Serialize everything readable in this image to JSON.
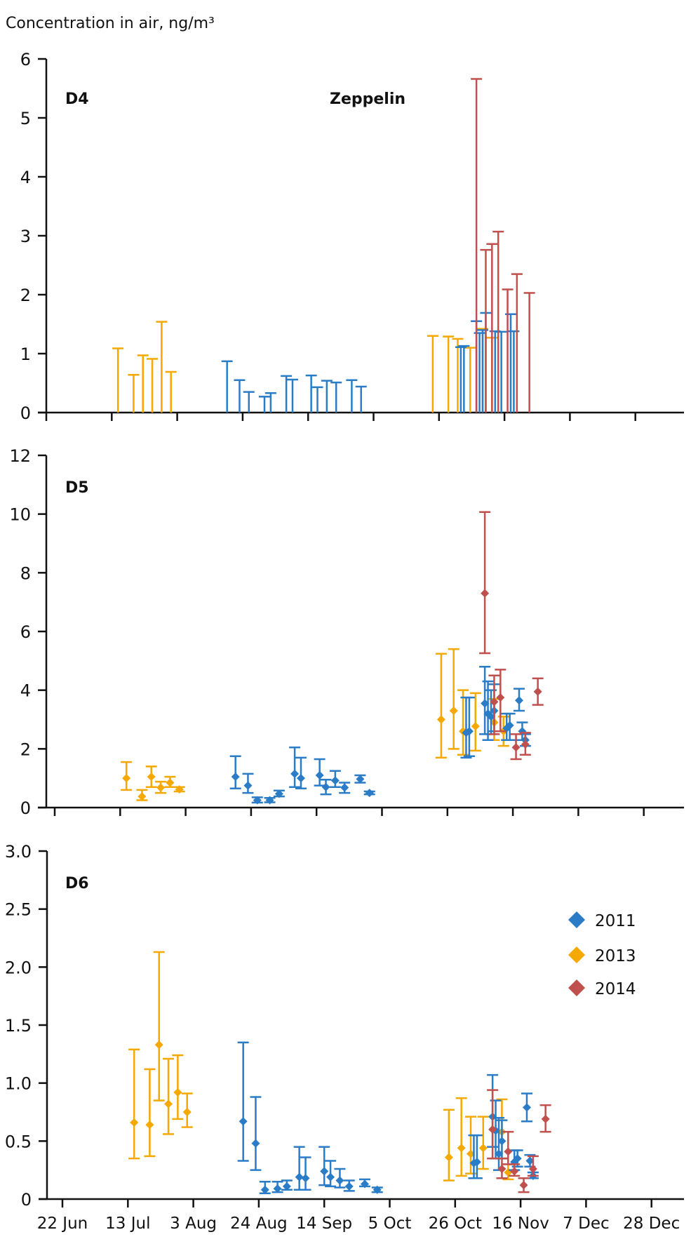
{
  "chart_data": {
    "type": "scatter",
    "y_axis_title": "Concentration in air, ng/m³",
    "station": "Zeppelin",
    "x_tick_labels": [
      "22 Jun",
      "13 Jul",
      "3 Aug",
      "24 Aug",
      "14 Sep",
      "5 Oct",
      "26 Oct",
      "16 Nov",
      "7 Dec",
      "28 Dec"
    ],
    "x_tick_days": [
      0,
      21,
      42,
      63,
      84,
      105,
      126,
      147,
      168,
      189
    ],
    "x_unit": "days since 22 Jun",
    "xlim": [
      0,
      197
    ],
    "legend": {
      "placement": "right, inside D6 panel",
      "entries": [
        {
          "label": "2011",
          "color": "#2a7cc7"
        },
        {
          "label": "2013",
          "color": "#f5a800"
        },
        {
          "label": "2014",
          "color": "#c0504d"
        }
      ]
    },
    "panels": [
      {
        "label": "D4",
        "ylim": [
          0,
          6
        ],
        "y_ticks": [
          "0",
          "1",
          "2",
          "3",
          "4",
          "5",
          "6"
        ],
        "y_tick_values": [
          0,
          1,
          2,
          3,
          4,
          5,
          6
        ],
        "show_points": false,
        "series": [
          {
            "name": "2013",
            "color": "#f5a800",
            "points": [
              {
                "x": 23,
                "y": 0,
                "hi": 1.09
              },
              {
                "x": 28,
                "y": 0,
                "hi": 0.64
              },
              {
                "x": 31,
                "y": 0,
                "hi": 0.97
              },
              {
                "x": 34,
                "y": 0,
                "hi": 0.91
              },
              {
                "x": 37,
                "y": 0,
                "hi": 1.54
              },
              {
                "x": 40,
                "y": 0,
                "hi": 0.69
              },
              {
                "x": 124,
                "y": 0,
                "hi": 1.3
              },
              {
                "x": 129,
                "y": 0,
                "hi": 1.29
              },
              {
                "x": 132,
                "y": 0,
                "hi": 1.25
              },
              {
                "x": 136,
                "y": 0,
                "hi": 1.1
              },
              {
                "x": 140,
                "y": 0,
                "hi": 1.42
              },
              {
                "x": 143,
                "y": 0,
                "hi": 1.27
              }
            ]
          },
          {
            "name": "2011",
            "color": "#2a7cc7",
            "points": [
              {
                "x": 58,
                "y": 0,
                "hi": 0.87
              },
              {
                "x": 62,
                "y": 0,
                "hi": 0.55
              },
              {
                "x": 65,
                "y": 0,
                "hi": 0.35
              },
              {
                "x": 70,
                "y": 0,
                "hi": 0.27
              },
              {
                "x": 72,
                "y": 0,
                "hi": 0.33
              },
              {
                "x": 77,
                "y": 0,
                "hi": 0.62
              },
              {
                "x": 79,
                "y": 0,
                "hi": 0.56
              },
              {
                "x": 85,
                "y": 0,
                "hi": 0.63
              },
              {
                "x": 87,
                "y": 0,
                "hi": 0.43
              },
              {
                "x": 90,
                "y": 0,
                "hi": 0.54
              },
              {
                "x": 93,
                "y": 0,
                "hi": 0.51
              },
              {
                "x": 98,
                "y": 0,
                "hi": 0.55
              },
              {
                "x": 101,
                "y": 0,
                "hi": 0.44
              },
              {
                "x": 133,
                "y": 0,
                "hi": 1.11
              },
              {
                "x": 134,
                "y": 0,
                "hi": 1.13
              },
              {
                "x": 138,
                "y": 0,
                "hi": 1.55
              },
              {
                "x": 139,
                "y": 0,
                "hi": 1.35
              },
              {
                "x": 140,
                "y": 0,
                "hi": 1.4
              },
              {
                "x": 141,
                "y": 0,
                "hi": 1.69
              },
              {
                "x": 144,
                "y": 0,
                "hi": 1.38
              },
              {
                "x": 146,
                "y": 0,
                "hi": 1.37
              },
              {
                "x": 149,
                "y": 0,
                "hi": 1.67
              },
              {
                "x": 150,
                "y": 0,
                "hi": 1.38
              }
            ]
          },
          {
            "name": "2014",
            "color": "#c0504d",
            "points": [
              {
                "x": 138,
                "y": 0,
                "hi": 5.66
              },
              {
                "x": 141,
                "y": 0,
                "hi": 2.76
              },
              {
                "x": 143,
                "y": 0,
                "hi": 2.86
              },
              {
                "x": 145,
                "y": 0,
                "hi": 3.07
              },
              {
                "x": 148,
                "y": 0,
                "hi": 2.09
              },
              {
                "x": 151,
                "y": 0,
                "hi": 2.35
              },
              {
                "x": 155,
                "y": 0,
                "hi": 2.03
              }
            ]
          }
        ]
      },
      {
        "label": "D5",
        "ylim": [
          0,
          12
        ],
        "y_ticks": [
          "0",
          "2",
          "4",
          "6",
          "8",
          "10",
          "12"
        ],
        "y_tick_values": [
          0,
          2,
          4,
          6,
          8,
          10,
          12
        ],
        "show_points": true,
        "series": [
          {
            "name": "2013",
            "color": "#f5a800",
            "points": [
              {
                "x": 23,
                "y": 1.0,
                "lo": 0.6,
                "hi": 1.55
              },
              {
                "x": 28,
                "y": 0.38,
                "lo": 0.25,
                "hi": 0.6
              },
              {
                "x": 31,
                "y": 1.05,
                "lo": 0.7,
                "hi": 1.4
              },
              {
                "x": 34,
                "y": 0.68,
                "lo": 0.5,
                "hi": 0.88
              },
              {
                "x": 37,
                "y": 0.85,
                "lo": 0.7,
                "hi": 1.05
              },
              {
                "x": 40,
                "y": 0.62,
                "lo": 0.55,
                "hi": 0.7
              },
              {
                "x": 124,
                "y": 3.0,
                "lo": 1.7,
                "hi": 5.24
              },
              {
                "x": 128,
                "y": 3.3,
                "lo": 2.0,
                "hi": 5.4
              },
              {
                "x": 131,
                "y": 2.6,
                "lo": 1.8,
                "hi": 4.0
              },
              {
                "x": 135,
                "y": 2.77,
                "lo": 1.94,
                "hi": 3.9
              },
              {
                "x": 141,
                "y": 2.9,
                "lo": 2.3,
                "hi": 3.7
              },
              {
                "x": 144,
                "y": 2.6,
                "lo": 2.1,
                "hi": 3.1
              }
            ]
          },
          {
            "name": "2011",
            "color": "#2a7cc7",
            "points": [
              {
                "x": 58,
                "y": 1.05,
                "lo": 0.65,
                "hi": 1.75
              },
              {
                "x": 62,
                "y": 0.75,
                "lo": 0.5,
                "hi": 1.15
              },
              {
                "x": 65,
                "y": 0.25,
                "lo": 0.17,
                "hi": 0.35
              },
              {
                "x": 69,
                "y": 0.25,
                "lo": 0.18,
                "hi": 0.33
              },
              {
                "x": 72,
                "y": 0.47,
                "lo": 0.38,
                "hi": 0.58
              },
              {
                "x": 77,
                "y": 1.15,
                "lo": 0.7,
                "hi": 2.05
              },
              {
                "x": 79,
                "y": 1.0,
                "lo": 0.65,
                "hi": 1.7
              },
              {
                "x": 85,
                "y": 1.1,
                "lo": 0.75,
                "hi": 1.65
              },
              {
                "x": 87,
                "y": 0.7,
                "lo": 0.45,
                "hi": 0.95
              },
              {
                "x": 90,
                "y": 0.92,
                "lo": 0.7,
                "hi": 1.25
              },
              {
                "x": 93,
                "y": 0.68,
                "lo": 0.5,
                "hi": 0.85
              },
              {
                "x": 98,
                "y": 0.97,
                "lo": 0.85,
                "hi": 1.1
              },
              {
                "x": 101,
                "y": 0.5,
                "lo": 0.45,
                "hi": 0.55
              },
              {
                "x": 132,
                "y": 2.55,
                "lo": 1.7,
                "hi": 3.75
              },
              {
                "x": 133,
                "y": 2.6,
                "lo": 1.75,
                "hi": 3.75
              },
              {
                "x": 138,
                "y": 3.55,
                "lo": 2.5,
                "hi": 4.8
              },
              {
                "x": 139,
                "y": 3.2,
                "lo": 2.3,
                "hi": 4.3
              },
              {
                "x": 140,
                "y": 3.1,
                "lo": 2.5,
                "hi": 4.0
              },
              {
                "x": 141,
                "y": 3.3,
                "lo": 2.6,
                "hi": 4.2
              },
              {
                "x": 145,
                "y": 2.7,
                "lo": 2.3,
                "hi": 3.2
              },
              {
                "x": 146,
                "y": 2.8,
                "lo": 2.3,
                "hi": 3.2
              },
              {
                "x": 149,
                "y": 3.65,
                "lo": 3.3,
                "hi": 4.05
              },
              {
                "x": 150,
                "y": 2.6,
                "lo": 2.3,
                "hi": 2.9
              },
              {
                "x": 151,
                "y": 2.3,
                "lo": 2.1,
                "hi": 2.5
              }
            ]
          },
          {
            "name": "2014",
            "color": "#c0504d",
            "points": [
              {
                "x": 138,
                "y": 7.3,
                "lo": 5.26,
                "hi": 10.07
              },
              {
                "x": 141,
                "y": 3.6,
                "lo": 2.5,
                "hi": 4.5
              },
              {
                "x": 143,
                "y": 3.75,
                "lo": 2.6,
                "hi": 4.7
              },
              {
                "x": 148,
                "y": 2.05,
                "lo": 1.65,
                "hi": 2.5
              },
              {
                "x": 151,
                "y": 2.15,
                "lo": 1.8,
                "hi": 2.55
              },
              {
                "x": 155,
                "y": 3.95,
                "lo": 3.5,
                "hi": 4.4
              }
            ]
          }
        ]
      },
      {
        "label": "D6",
        "ylim": [
          0,
          3.0
        ],
        "y_ticks": [
          "0",
          "0.5",
          "1.0",
          "1.5",
          "2.0",
          "2.5",
          "3.0"
        ],
        "y_tick_values": [
          0,
          0.5,
          1.0,
          1.5,
          2.0,
          2.5,
          3.0
        ],
        "show_points": true,
        "series": [
          {
            "name": "2013",
            "color": "#f5a800",
            "points": [
              {
                "x": 23,
                "y": 0.66,
                "lo": 0.35,
                "hi": 1.29
              },
              {
                "x": 28,
                "y": 0.64,
                "lo": 0.37,
                "hi": 1.12
              },
              {
                "x": 31,
                "y": 1.33,
                "lo": 0.85,
                "hi": 2.13
              },
              {
                "x": 34,
                "y": 0.82,
                "lo": 0.56,
                "hi": 1.21
              },
              {
                "x": 37,
                "y": 0.92,
                "lo": 0.69,
                "hi": 1.24
              },
              {
                "x": 40,
                "y": 0.75,
                "lo": 0.62,
                "hi": 0.91
              },
              {
                "x": 124,
                "y": 0.36,
                "lo": 0.16,
                "hi": 0.77
              },
              {
                "x": 128,
                "y": 0.44,
                "lo": 0.2,
                "hi": 0.87
              },
              {
                "x": 131,
                "y": 0.39,
                "lo": 0.22,
                "hi": 0.71
              },
              {
                "x": 135,
                "y": 0.44,
                "lo": 0.26,
                "hi": 0.71
              },
              {
                "x": 141,
                "y": 0.58,
                "lo": 0.35,
                "hi": 0.86
              },
              {
                "x": 143,
                "y": 0.23,
                "lo": 0.17,
                "hi": 0.3
              }
            ]
          },
          {
            "name": "2011",
            "color": "#2a7cc7",
            "points": [
              {
                "x": 58,
                "y": 0.67,
                "lo": 0.33,
                "hi": 1.35
              },
              {
                "x": 62,
                "y": 0.48,
                "lo": 0.25,
                "hi": 0.88
              },
              {
                "x": 65,
                "y": 0.08,
                "lo": 0.05,
                "hi": 0.15
              },
              {
                "x": 69,
                "y": 0.09,
                "lo": 0.06,
                "hi": 0.15
              },
              {
                "x": 72,
                "y": 0.11,
                "lo": 0.08,
                "hi": 0.16
              },
              {
                "x": 76,
                "y": 0.19,
                "lo": 0.08,
                "hi": 0.45
              },
              {
                "x": 78,
                "y": 0.18,
                "lo": 0.08,
                "hi": 0.36
              },
              {
                "x": 84,
                "y": 0.24,
                "lo": 0.12,
                "hi": 0.45
              },
              {
                "x": 86,
                "y": 0.19,
                "lo": 0.11,
                "hi": 0.33
              },
              {
                "x": 89,
                "y": 0.16,
                "lo": 0.1,
                "hi": 0.26
              },
              {
                "x": 92,
                "y": 0.11,
                "lo": 0.07,
                "hi": 0.16
              },
              {
                "x": 97,
                "y": 0.13,
                "lo": 0.11,
                "hi": 0.17
              },
              {
                "x": 101,
                "y": 0.08,
                "lo": 0.06,
                "hi": 0.1
              },
              {
                "x": 132,
                "y": 0.31,
                "lo": 0.18,
                "hi": 0.55
              },
              {
                "x": 133,
                "y": 0.32,
                "lo": 0.18,
                "hi": 0.55
              },
              {
                "x": 138,
                "y": 0.71,
                "lo": 0.45,
                "hi": 1.07
              },
              {
                "x": 139,
                "y": 0.59,
                "lo": 0.35,
                "hi": 0.85
              },
              {
                "x": 140,
                "y": 0.39,
                "lo": 0.25,
                "hi": 0.7
              },
              {
                "x": 141,
                "y": 0.5,
                "lo": 0.35,
                "hi": 0.68
              },
              {
                "x": 145,
                "y": 0.32,
                "lo": 0.25,
                "hi": 0.42
              },
              {
                "x": 146,
                "y": 0.35,
                "lo": 0.28,
                "hi": 0.42
              },
              {
                "x": 149,
                "y": 0.79,
                "lo": 0.67,
                "hi": 0.91
              },
              {
                "x": 150,
                "y": 0.33,
                "lo": 0.28,
                "hi": 0.38
              },
              {
                "x": 151,
                "y": 0.2,
                "lo": 0.18,
                "hi": 0.23
              }
            ]
          },
          {
            "name": "2014",
            "color": "#c0504d",
            "points": [
              {
                "x": 138,
                "y": 0.6,
                "lo": 0.35,
                "hi": 0.94
              },
              {
                "x": 141,
                "y": 0.26,
                "lo": 0.18,
                "hi": 0.35
              },
              {
                "x": 143,
                "y": 0.41,
                "lo": 0.3,
                "hi": 0.58
              },
              {
                "x": 145,
                "y": 0.24,
                "lo": 0.2,
                "hi": 0.3
              },
              {
                "x": 148,
                "y": 0.12,
                "lo": 0.06,
                "hi": 0.18
              },
              {
                "x": 151,
                "y": 0.26,
                "lo": 0.2,
                "hi": 0.37
              },
              {
                "x": 155,
                "y": 0.69,
                "lo": 0.58,
                "hi": 0.81
              }
            ]
          }
        ]
      }
    ]
  }
}
